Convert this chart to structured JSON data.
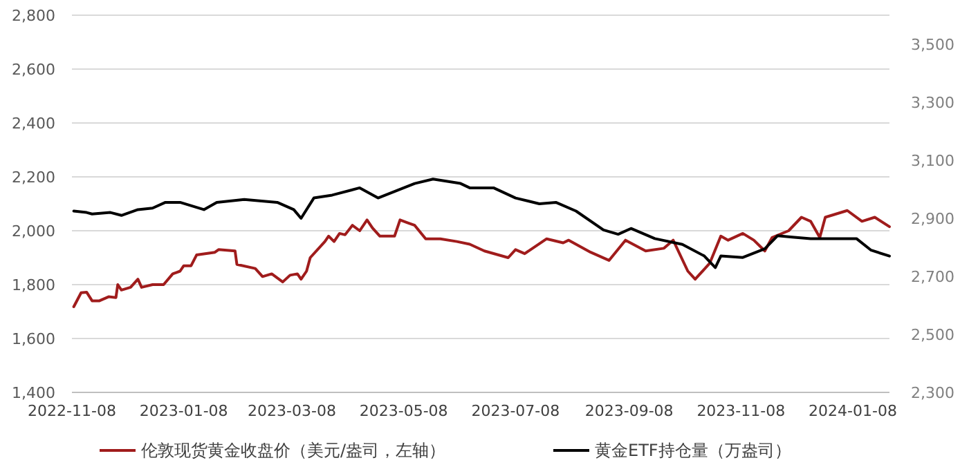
{
  "chart_data": {
    "type": "line",
    "x": [
      "2022-11-09",
      "2022-11-13",
      "2022-11-16",
      "2022-11-19",
      "2022-11-23",
      "2022-11-28",
      "2022-12-02",
      "2022-12-03",
      "2022-12-05",
      "2022-12-10",
      "2022-12-14",
      "2022-12-16",
      "2022-12-22",
      "2022-12-28",
      "2023-01-02",
      "2023-01-06",
      "2023-01-08",
      "2023-01-12",
      "2023-01-15",
      "2023-01-25",
      "2023-01-27",
      "2023-02-05",
      "2023-02-06",
      "2023-02-16",
      "2023-02-20",
      "2023-02-25",
      "2023-03-03",
      "2023-03-07",
      "2023-03-11",
      "2023-03-13",
      "2023-03-16",
      "2023-03-18",
      "2023-03-26",
      "2023-03-28",
      "2023-03-31",
      "2023-04-03",
      "2023-04-06",
      "2023-04-10",
      "2023-04-14",
      "2023-04-18",
      "2023-04-21",
      "2023-04-25",
      "2023-05-03",
      "2023-05-06",
      "2023-05-10",
      "2023-05-14",
      "2023-05-20",
      "2023-05-28",
      "2023-06-06",
      "2023-06-13",
      "2023-06-21",
      "2023-07-04",
      "2023-07-08",
      "2023-07-13",
      "2023-07-25",
      "2023-08-03",
      "2023-08-06",
      "2023-08-18",
      "2023-08-28",
      "2023-09-06",
      "2023-09-17",
      "2023-09-27",
      "2023-10-02",
      "2023-10-10",
      "2023-10-14",
      "2023-10-22",
      "2023-10-28",
      "2023-11-01",
      "2023-11-09",
      "2023-11-15",
      "2023-11-21",
      "2023-11-25",
      "2023-12-04",
      "2023-12-11",
      "2023-12-16",
      "2023-12-21",
      "2023-12-24",
      "2024-01-05",
      "2024-01-13",
      "2024-01-20",
      "2024-01-28"
    ],
    "series": [
      {
        "name": "伦敦现货黄金收盘价（美元/盎司，左轴）",
        "color": "#a01c1c",
        "values": [
          1718,
          1770,
          1772,
          1740,
          1740,
          1755,
          1752,
          1800,
          1780,
          1790,
          1820,
          1790,
          1800,
          1800,
          1840,
          1850,
          1870,
          1870,
          1910,
          1920,
          1930,
          1925,
          1875,
          1860,
          1830,
          1840,
          1810,
          1835,
          1840,
          1820,
          1850,
          1900,
          1960,
          1980,
          1960,
          1990,
          1985,
          2020,
          2000,
          2040,
          2010,
          1980,
          1980,
          2040,
          2030,
          2020,
          1970,
          1970,
          1960,
          1950,
          1925,
          1900,
          1930,
          1915,
          1970,
          1955,
          1965,
          1920,
          1890,
          1965,
          1925,
          1935,
          1965,
          1850,
          1820,
          1880,
          1980,
          1965,
          1990,
          1965,
          1925,
          1975,
          2000,
          2050,
          2035,
          1975,
          2050,
          2075,
          2035,
          2050,
          2015
        ]
      },
      {
        "name": "黄金ETF持仓量（万盎司）",
        "color": "#000000",
        "axis": "y2",
        "x": [
          "2022-11-09",
          "2022-11-16",
          "2022-11-19",
          "2022-11-29",
          "2022-12-05",
          "2022-12-14",
          "2022-12-22",
          "2022-12-29",
          "2023-01-06",
          "2023-01-19",
          "2023-01-26",
          "2023-02-10",
          "2023-02-28",
          "2023-03-09",
          "2023-03-13",
          "2023-03-20",
          "2023-03-30",
          "2023-04-14",
          "2023-04-24",
          "2023-05-04",
          "2023-05-14",
          "2023-05-24",
          "2023-06-08",
          "2023-06-13",
          "2023-06-26",
          "2023-07-08",
          "2023-07-21",
          "2023-07-30",
          "2023-08-10",
          "2023-08-25",
          "2023-09-02",
          "2023-09-09",
          "2023-09-22",
          "2023-10-07",
          "2023-10-19",
          "2023-10-25",
          "2023-10-28",
          "2023-11-09",
          "2023-11-21",
          "2023-11-28",
          "2023-12-06",
          "2023-12-16",
          "2024-01-01",
          "2024-01-10",
          "2024-01-18",
          "2024-01-28"
        ],
        "values": [
          2925,
          2920,
          2915,
          2920,
          2910,
          2930,
          2935,
          2955,
          2955,
          2930,
          2955,
          2965,
          2955,
          2930,
          2900,
          2970,
          2980,
          3005,
          2970,
          2995,
          3020,
          3035,
          3020,
          3005,
          3005,
          2970,
          2950,
          2955,
          2925,
          2860,
          2845,
          2865,
          2830,
          2810,
          2770,
          2730,
          2770,
          2765,
          2795,
          2840,
          2835,
          2830,
          2830,
          2830,
          2790,
          2770
        ]
      }
    ],
    "xlim": [
      "2022-11-08",
      "2024-01-28"
    ],
    "xticks": [
      "2022-11-08",
      "2023-01-08",
      "2023-03-08",
      "2023-05-08",
      "2023-07-08",
      "2023-09-08",
      "2023-11-08",
      "2024-01-08"
    ],
    "ylim": [
      1400,
      2800
    ],
    "yticks": [
      {
        "value": 1400,
        "label": "1,400"
      },
      {
        "value": 1600,
        "label": "1,600"
      },
      {
        "value": 1800,
        "label": "1,800"
      },
      {
        "value": 2000,
        "label": "2,000"
      },
      {
        "value": 2200,
        "label": "2,200"
      },
      {
        "value": 2400,
        "label": "2,400"
      },
      {
        "value": 2600,
        "label": "2,600"
      },
      {
        "value": 2800,
        "label": "2,800"
      }
    ],
    "y2lim": [
      2300,
      3600
    ],
    "y2ticks": [
      {
        "value": 2300,
        "label": "2,300"
      },
      {
        "value": 2500,
        "label": "2,500"
      },
      {
        "value": 2700,
        "label": "2,700"
      },
      {
        "value": 2900,
        "label": "2,900"
      },
      {
        "value": 3100,
        "label": "3,100"
      },
      {
        "value": 3300,
        "label": "3,300"
      },
      {
        "value": 3500,
        "label": "3,500"
      }
    ],
    "grid": "y",
    "legend": "bottom",
    "marker": "none",
    "line_style": "solid"
  }
}
